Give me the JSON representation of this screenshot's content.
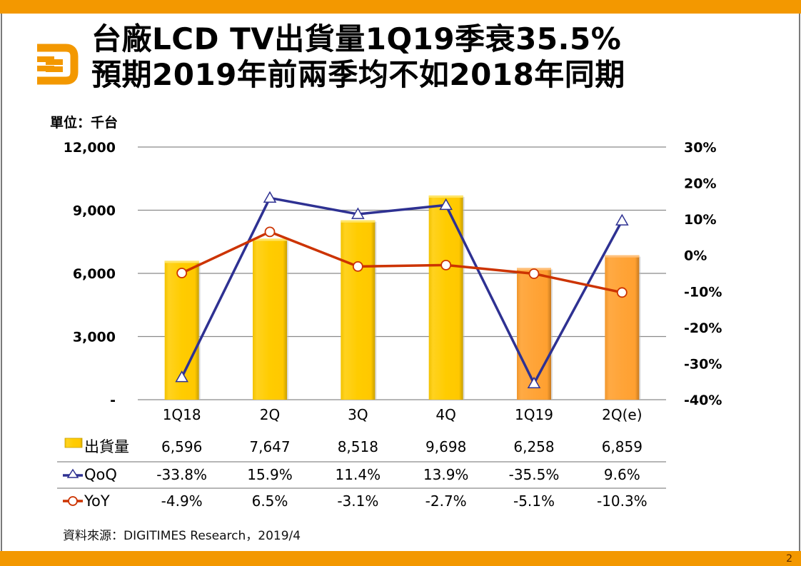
{
  "slide": {
    "title_line1": "台廠LCD TV出貨量1Q19季衰35.5%",
    "title_line2": "預期2019年前兩季均不如2018年同期",
    "unit_label": "單位：千台",
    "source": "資料來源：DIGITIMES Research，2019/4",
    "page_number": "2",
    "logo_icon": "digitimes-d-logo-icon",
    "brand_color": "#F39800"
  },
  "chart_data": {
    "type": "bar",
    "title": "台廠LCD TV出貨量1Q19季衰35.5% 預期2019年前兩季均不如2018年同期",
    "ylabel": "單位：千台",
    "categories": [
      "1Q18",
      "2Q",
      "3Q",
      "4Q",
      "1Q19",
      "2Q(e)"
    ],
    "left_axis": {
      "ylim": [
        0,
        12000
      ],
      "ticks": [
        12000,
        9000,
        6000,
        3000,
        0
      ],
      "tick_labels": [
        "12,000",
        "9,000",
        "6,000",
        "3,000",
        "-"
      ]
    },
    "right_axis": {
      "ylim": [
        -40,
        30
      ],
      "ticks": [
        30,
        20,
        10,
        0,
        -10,
        -20,
        -30,
        -40
      ],
      "tick_labels": [
        "30%",
        "20%",
        "10%",
        "0%",
        "-10%",
        "-20%",
        "-30%",
        "-40%"
      ]
    },
    "grid": true,
    "series": [
      {
        "name": "出貨量",
        "type": "bar",
        "axis": "left",
        "values": [
          6596,
          7647,
          8518,
          9698,
          6258,
          6859
        ],
        "bar_colors": [
          "#FFCC00",
          "#FFCC00",
          "#FFCC00",
          "#FFCC00",
          "#FFA438",
          "#FFA438"
        ]
      },
      {
        "name": "QoQ",
        "type": "line",
        "axis": "right",
        "marker": "triangle",
        "color": "#2E3192",
        "values": [
          -33.8,
          15.9,
          11.4,
          13.9,
          -35.5,
          9.6
        ]
      },
      {
        "name": "YoY",
        "type": "line",
        "axis": "right",
        "marker": "circle",
        "color": "#CC3300",
        "values": [
          -4.9,
          6.5,
          -3.1,
          -2.7,
          -5.1,
          -10.3
        ]
      }
    ],
    "legend": "table-below"
  },
  "table": {
    "rows": [
      {
        "label": "出貨量",
        "cells": [
          "6,596",
          "7,647",
          "8,518",
          "9,698",
          "6,258",
          "6,859"
        ]
      },
      {
        "label": "QoQ",
        "cells": [
          "-33.8%",
          "15.9%",
          "11.4%",
          "13.9%",
          "-35.5%",
          "9.6%"
        ]
      },
      {
        "label": "YoY",
        "cells": [
          "-4.9%",
          "6.5%",
          "-3.1%",
          "-2.7%",
          "-5.1%",
          "-10.3%"
        ]
      }
    ]
  }
}
